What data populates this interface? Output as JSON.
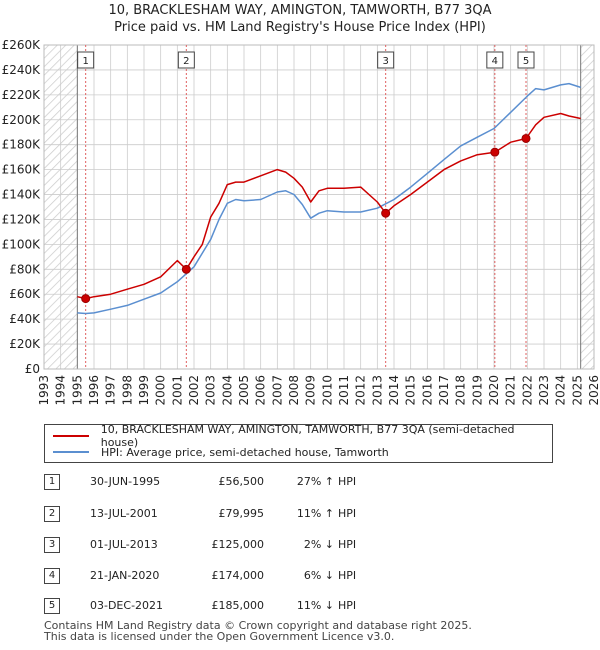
{
  "title_line1": "10, BRACKLESHAM WAY, AMINGTON, TAMWORTH, B77 3QA",
  "title_line2": "Price paid vs. HM Land Registry's House Price Index (HPI)",
  "chart_data": {
    "type": "line",
    "xlim": [
      1993,
      2026
    ],
    "ylim": [
      0,
      260000
    ],
    "y_ticks": [
      {
        "value": 0,
        "label": "£0"
      },
      {
        "value": 20000,
        "label": "£20K"
      },
      {
        "value": 40000,
        "label": "£40K"
      },
      {
        "value": 60000,
        "label": "£60K"
      },
      {
        "value": 80000,
        "label": "£80K"
      },
      {
        "value": 100000,
        "label": "£100K"
      },
      {
        "value": 120000,
        "label": "£120K"
      },
      {
        "value": 140000,
        "label": "£140K"
      },
      {
        "value": 160000,
        "label": "£160K"
      },
      {
        "value": 180000,
        "label": "£180K"
      },
      {
        "value": 200000,
        "label": "£200K"
      },
      {
        "value": 220000,
        "label": "£220K"
      },
      {
        "value": 240000,
        "label": "£240K"
      },
      {
        "value": 260000,
        "label": "£260K"
      }
    ],
    "x_ticks": [
      1993,
      1994,
      1995,
      1996,
      1997,
      1998,
      1999,
      2000,
      2001,
      2002,
      2003,
      2004,
      2005,
      2006,
      2007,
      2008,
      2009,
      2010,
      2011,
      2012,
      2013,
      2014,
      2015,
      2016,
      2017,
      2018,
      2019,
      2020,
      2021,
      2022,
      2023,
      2024,
      2025,
      2026
    ],
    "data_start": 1995.0,
    "data_end": 2025.2,
    "series": [
      {
        "name": "10, BRACKLESHAM WAY, AMINGTON, TAMWORTH, B77 3QA (semi-detached house)",
        "color": "#cc0000",
        "x": [
          1995.0,
          1995.5,
          1996,
          1997,
          1998,
          1999,
          2000,
          2001,
          2001.54,
          2002,
          2002.5,
          2003,
          2003.5,
          2004,
          2004.5,
          2005,
          2006,
          2007,
          2007.5,
          2008,
          2008.5,
          2009,
          2009.5,
          2010,
          2011,
          2012,
          2013,
          2013.5,
          2014,
          2015,
          2016,
          2017,
          2018,
          2019,
          2020.05,
          2021,
          2021.92,
          2022.5,
          2023,
          2024,
          2024.5,
          2025.2
        ],
        "values": [
          58000,
          56500,
          58000,
          60000,
          64000,
          68000,
          74000,
          87000,
          79995,
          90000,
          100000,
          122000,
          133000,
          148000,
          150000,
          150000,
          155000,
          160000,
          158000,
          153000,
          146000,
          134000,
          143000,
          145000,
          145000,
          146000,
          134000,
          125000,
          131000,
          140000,
          150000,
          160000,
          167000,
          172000,
          174000,
          182000,
          185000,
          196000,
          202000,
          205000,
          203000,
          201000
        ]
      },
      {
        "name": "HPI: Average price, semi-detached house, Tamworth",
        "color": "#5b8fd0",
        "x": [
          1995.0,
          1995.5,
          1996,
          1997,
          1998,
          1999,
          2000,
          2001,
          2002,
          2003,
          2003.5,
          2004,
          2004.5,
          2005,
          2006,
          2007,
          2007.5,
          2008,
          2008.5,
          2009,
          2009.5,
          2010,
          2011,
          2012,
          2013,
          2014,
          2015,
          2016,
          2017,
          2018,
          2019,
          2020,
          2021,
          2022,
          2022.5,
          2023,
          2024,
          2024.5,
          2025.2
        ],
        "values": [
          45000,
          44500,
          45000,
          48000,
          51000,
          56000,
          61000,
          70000,
          82000,
          104000,
          120000,
          133000,
          136000,
          135000,
          136000,
          142000,
          143000,
          140000,
          132000,
          121000,
          125000,
          127000,
          126000,
          126000,
          129000,
          136000,
          146000,
          157000,
          168000,
          179000,
          186000,
          193000,
          206000,
          219000,
          225000,
          224000,
          228000,
          229000,
          226000
        ]
      }
    ],
    "sales": [
      {
        "id": "1",
        "year": 1995.5,
        "price": 56500
      },
      {
        "id": "2",
        "year": 2001.54,
        "price": 79995
      },
      {
        "id": "3",
        "year": 2013.5,
        "price": 125000
      },
      {
        "id": "4",
        "year": 2020.05,
        "price": 174000
      },
      {
        "id": "5",
        "year": 2021.92,
        "price": 185000
      }
    ]
  },
  "legend": {
    "property_label": "10, BRACKLESHAM WAY, AMINGTON, TAMWORTH, B77 3QA (semi-detached house)",
    "hpi_label": "HPI: Average price, semi-detached house, Tamworth"
  },
  "colors": {
    "property": "#cc0000",
    "hpi": "#5b8fd0",
    "hatch": "#cccccc",
    "grid": "#cccccc"
  },
  "sales_table": [
    {
      "id": "1",
      "date": "30-JUN-1995",
      "price": "£56,500",
      "pct": "27%",
      "arrow": "↑",
      "ref": "HPI"
    },
    {
      "id": "2",
      "date": "13-JUL-2001",
      "price": "£79,995",
      "pct": "11%",
      "arrow": "↑",
      "ref": "HPI"
    },
    {
      "id": "3",
      "date": "01-JUL-2013",
      "price": "£125,000",
      "pct": "2%",
      "arrow": "↓",
      "ref": "HPI"
    },
    {
      "id": "4",
      "date": "21-JAN-2020",
      "price": "£174,000",
      "pct": "6%",
      "arrow": "↓",
      "ref": "HPI"
    },
    {
      "id": "5",
      "date": "03-DEC-2021",
      "price": "£185,000",
      "pct": "11%",
      "arrow": "↓",
      "ref": "HPI"
    }
  ],
  "footer": {
    "line1": "Contains HM Land Registry data © Crown copyright and database right 2025.",
    "line2": "This data is licensed under the Open Government Licence v3.0."
  }
}
